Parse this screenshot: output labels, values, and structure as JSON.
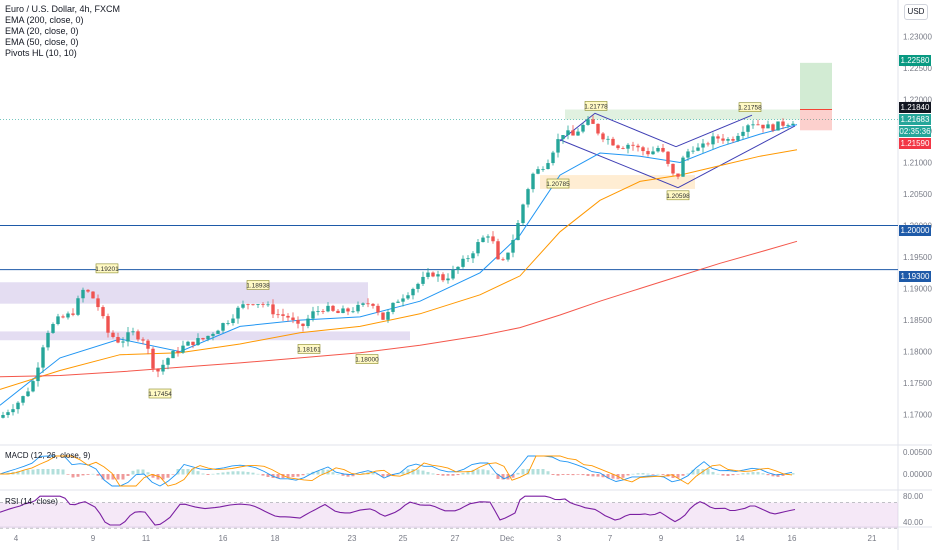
{
  "header": {
    "title": "Euro / U.S. Dollar, 4h, FXCM",
    "indicators": [
      "EMA (200, close, 0)",
      "EMA (20, close, 0)",
      "EMA (50, close, 0)",
      "Pivots HL (10, 10)"
    ],
    "currency_button": "USD"
  },
  "price_labels": {
    "target": "1.22580",
    "stop": "1.21840",
    "last": "1.21683",
    "countdown": "02:35:36",
    "entry": "1.21590",
    "level_1": "1.20000",
    "level_2": "1.19300"
  },
  "colors": {
    "up": "#26a69a",
    "down": "#ef5350",
    "ema20": "#2196f3",
    "ema50": "#ff9800",
    "ema200": "#f4574b",
    "horizontal_line": "#1e5aa8",
    "zone": "#b39ddb",
    "rsi": "#7b1fa2",
    "macd_line": "#2196f3",
    "signal_line": "#ff9800"
  },
  "panes": {
    "macd_title": "MACD (12, 26, close, 9)",
    "rsi_title": "RSI (14, close)",
    "macd_ticks": [
      "0.00500",
      "0.00000"
    ],
    "rsi_ticks": [
      "80.00",
      "40.00"
    ]
  },
  "chart_data": {
    "type": "candlestick",
    "title": "Euro / U.S. Dollar, 4h, FXCM",
    "ylim": [
      1.1655,
      1.2345
    ],
    "y_ticks": [
      "1.23000",
      "1.22500",
      "1.22000",
      "1.21500",
      "1.21000",
      "1.20500",
      "1.20000",
      "1.19500",
      "1.19000",
      "1.18500",
      "1.18000",
      "1.17500",
      "1.17000"
    ],
    "x_ticks": [
      "4",
      "9",
      "11",
      "16",
      "18",
      "23",
      "25",
      "27",
      "Dec",
      "3",
      "7",
      "9",
      "14",
      "16",
      "21"
    ],
    "horizontal_lines": [
      1.2,
      1.193
    ],
    "pivot_labels": [
      {
        "text": "1.19201",
        "date": "Nov 9",
        "price": 1.19201
      },
      {
        "text": "1.18938",
        "date": "Nov 18",
        "price": 1.18938
      },
      {
        "text": "1.18161",
        "date": "Nov 20",
        "price": 1.18161
      },
      {
        "text": "1.18000",
        "date": "Nov 23",
        "price": 1.18
      },
      {
        "text": "1.17454",
        "date": "Nov 11",
        "price": 1.17454
      },
      {
        "text": "1.21778",
        "date": "Dec 4",
        "price": 1.21778
      },
      {
        "text": "1.20785",
        "date": "Dec 1",
        "price": 1.20785
      },
      {
        "text": "1.20598",
        "date": "Dec 9",
        "price": 1.20598
      },
      {
        "text": "1.21758",
        "date": "Dec 14",
        "price": 1.21758
      }
    ],
    "trade_position": {
      "entry": 1.2159,
      "stop": 1.2184,
      "target": 1.2258
    },
    "close_points": [
      [
        0,
        1.1695
      ],
      [
        10,
        1.171
      ],
      [
        22,
        1.1725
      ],
      [
        34,
        1.1755
      ],
      [
        46,
        1.183
      ],
      [
        58,
        1.185
      ],
      [
        72,
        1.186
      ],
      [
        84,
        1.19
      ],
      [
        96,
        1.188
      ],
      [
        108,
        1.183
      ],
      [
        120,
        1.1815
      ],
      [
        132,
        1.183
      ],
      [
        144,
        1.182
      ],
      [
        156,
        1.1765
      ],
      [
        168,
        1.179
      ],
      [
        180,
        1.1805
      ],
      [
        192,
        1.1815
      ],
      [
        204,
        1.182
      ],
      [
        216,
        1.1835
      ],
      [
        228,
        1.185
      ],
      [
        240,
        1.187
      ],
      [
        252,
        1.188
      ],
      [
        264,
        1.1875
      ],
      [
        276,
        1.186
      ],
      [
        288,
        1.1855
      ],
      [
        300,
        1.1835
      ],
      [
        312,
        1.186
      ],
      [
        324,
        1.187
      ],
      [
        336,
        1.186
      ],
      [
        348,
        1.1865
      ],
      [
        360,
        1.187
      ],
      [
        372,
        1.188
      ],
      [
        384,
        1.185
      ],
      [
        396,
        1.188
      ],
      [
        408,
        1.1895
      ],
      [
        420,
        1.191
      ],
      [
        432,
        1.1925
      ],
      [
        444,
        1.1915
      ],
      [
        456,
        1.193
      ],
      [
        468,
        1.195
      ],
      [
        480,
        1.1975
      ],
      [
        490,
        1.199
      ],
      [
        500,
        1.193
      ],
      [
        508,
        1.196
      ],
      [
        516,
        1.199
      ],
      [
        524,
        1.204
      ],
      [
        532,
        1.208
      ],
      [
        540,
        1.209
      ],
      [
        548,
        1.2105
      ],
      [
        556,
        1.213
      ],
      [
        564,
        1.215
      ],
      [
        572,
        1.214
      ],
      [
        580,
        1.2155
      ],
      [
        590,
        1.2165
      ],
      [
        600,
        1.2145
      ],
      [
        610,
        1.2135
      ],
      [
        620,
        1.2125
      ],
      [
        630,
        1.213
      ],
      [
        640,
        1.212
      ],
      [
        650,
        1.2115
      ],
      [
        660,
        1.2125
      ],
      [
        668,
        1.2095
      ],
      [
        676,
        1.207
      ],
      [
        684,
        1.211
      ],
      [
        692,
        1.2125
      ],
      [
        700,
        1.212
      ],
      [
        710,
        1.2135
      ],
      [
        720,
        1.214
      ],
      [
        730,
        1.2135
      ],
      [
        740,
        1.215
      ],
      [
        750,
        1.2165
      ],
      [
        760,
        1.216
      ],
      [
        770,
        1.2155
      ],
      [
        780,
        1.216
      ],
      [
        790,
        1.2165
      ],
      [
        797,
        1.2168
      ]
    ],
    "series": [
      {
        "name": "EMA (20, close, 0)",
        "points": [
          [
            0,
            1.1715
          ],
          [
            60,
            1.179
          ],
          [
            120,
            1.182
          ],
          [
            180,
            1.18
          ],
          [
            240,
            1.184
          ],
          [
            300,
            1.185
          ],
          [
            360,
            1.1855
          ],
          [
            420,
            1.188
          ],
          [
            480,
            1.1925
          ],
          [
            520,
            1.1985
          ],
          [
            560,
            1.208
          ],
          [
            600,
            1.2115
          ],
          [
            640,
            1.211
          ],
          [
            680,
            1.21
          ],
          [
            720,
            1.2125
          ],
          [
            760,
            1.2145
          ],
          [
            797,
            1.216
          ]
        ]
      },
      {
        "name": "EMA (50, close, 0)",
        "points": [
          [
            0,
            1.174
          ],
          [
            60,
            1.177
          ],
          [
            120,
            1.1795
          ],
          [
            180,
            1.1798
          ],
          [
            240,
            1.1812
          ],
          [
            300,
            1.183
          ],
          [
            360,
            1.184
          ],
          [
            420,
            1.186
          ],
          [
            480,
            1.189
          ],
          [
            520,
            1.192
          ],
          [
            560,
            1.199
          ],
          [
            600,
            1.204
          ],
          [
            640,
            1.207
          ],
          [
            680,
            1.208
          ],
          [
            720,
            1.2095
          ],
          [
            760,
            1.211
          ],
          [
            797,
            1.212
          ]
        ]
      },
      {
        "name": "EMA (200, close, 0)",
        "points": [
          [
            0,
            1.176
          ],
          [
            60,
            1.1762
          ],
          [
            120,
            1.1768
          ],
          [
            180,
            1.1775
          ],
          [
            240,
            1.1782
          ],
          [
            300,
            1.179
          ],
          [
            360,
            1.1798
          ],
          [
            420,
            1.181
          ],
          [
            480,
            1.1825
          ],
          [
            520,
            1.1838
          ],
          [
            560,
            1.1858
          ],
          [
            600,
            1.188
          ],
          [
            640,
            1.19
          ],
          [
            680,
            1.192
          ],
          [
            720,
            1.194
          ],
          [
            760,
            1.1958
          ],
          [
            797,
            1.1975
          ]
        ]
      }
    ]
  }
}
